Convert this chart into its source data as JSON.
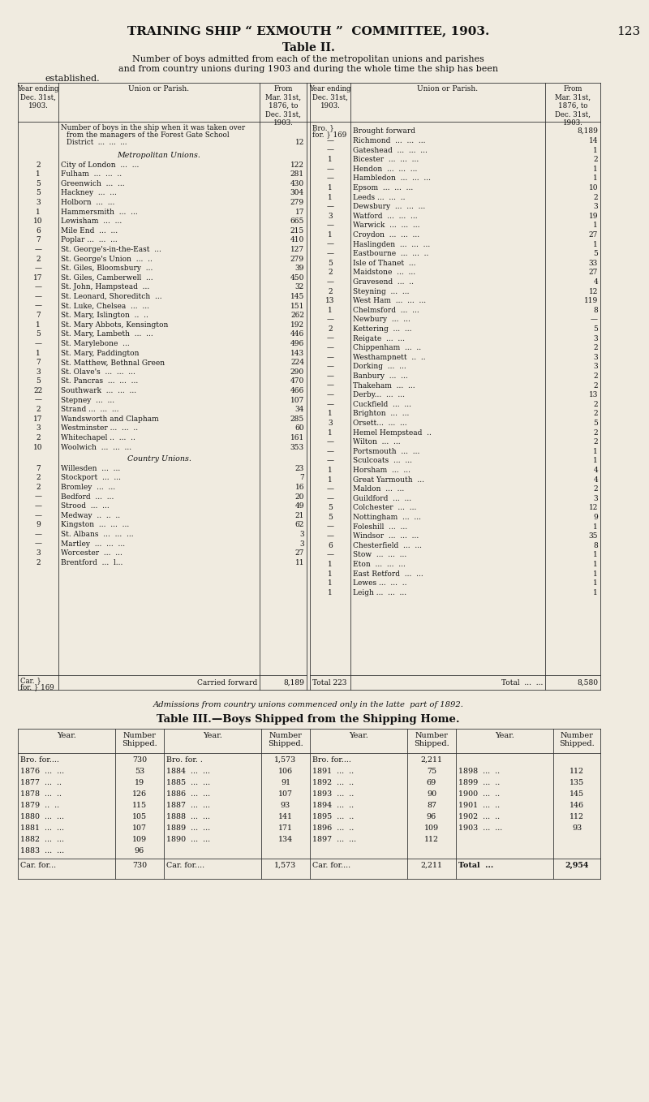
{
  "bg_color": "#f0ebe0",
  "page_title": "TRAINING SHIP “ EXMOUTH ”  COMMITTEE, 1903.",
  "page_number": "123",
  "table2_title": "Table II.",
  "table2_note": "Admissions from country unions commenced only in the latte  part of 1892.",
  "table3_title": "Table III.—Boys Shipped from the Shipping Home.",
  "left_rows": [
    {
      "yr": "",
      "union": "Number of boys in the ship when it was taken over",
      "frm": "",
      "special": "forestgate"
    },
    {
      "yr": "",
      "union": "Metropolitan Unions.",
      "frm": "",
      "special": "section_header"
    },
    {
      "yr": "2",
      "union": "City of London  ...  ...",
      "frm": "122"
    },
    {
      "yr": "1",
      "union": "Fulham  ...  ...  ..",
      "frm": "281"
    },
    {
      "yr": "5",
      "union": "Greenwich  ...  ...",
      "frm": "430"
    },
    {
      "yr": "5",
      "union": "Hackney  ...  ...",
      "frm": "304"
    },
    {
      "yr": "3",
      "union": "Holborn  ...  ...",
      "frm": "279"
    },
    {
      "yr": "1",
      "union": "Hammersmith  ...  ...",
      "frm": "17"
    },
    {
      "yr": "10",
      "union": "Lewisham  ...  ...",
      "frm": "665"
    },
    {
      "yr": "6",
      "union": "Mile End  ...  ...",
      "frm": "215"
    },
    {
      "yr": "7",
      "union": "Poplar ...  ...  ...",
      "frm": "410"
    },
    {
      "yr": "—",
      "union": "St. George's-in-the-East  ...",
      "frm": "127"
    },
    {
      "yr": "2",
      "union": "St. George's Union  ...  ..",
      "frm": "279"
    },
    {
      "yr": "—",
      "union": "St. Giles, Bloomsbury  ...",
      "frm": "39"
    },
    {
      "yr": "17",
      "union": "St. Giles, Camberwell  ...",
      "frm": "450"
    },
    {
      "yr": "—",
      "union": "St. John, Hampstead  ...",
      "frm": "32"
    },
    {
      "yr": "—",
      "union": "St. Leonard, Shoreditch  ...",
      "frm": "145"
    },
    {
      "yr": "—",
      "union": "St. Luke, Chelsea  ...  ...",
      "frm": "151"
    },
    {
      "yr": "7",
      "union": "St. Mary, Islington  ..  ..",
      "frm": "262"
    },
    {
      "yr": "1",
      "union": "St. Mary Abbots, Kensington",
      "frm": "192"
    },
    {
      "yr": "5",
      "union": "St. Mary, Lambeth  ...  ...",
      "frm": "446"
    },
    {
      "yr": "—",
      "union": "St. Marylebone  ...",
      "frm": "496"
    },
    {
      "yr": "1",
      "union": "St. Mary, Paddington",
      "frm": "143"
    },
    {
      "yr": "7",
      "union": "St. Matthew, Bethnal Green",
      "frm": "224"
    },
    {
      "yr": "3",
      "union": "St. Olave's  ...  ...  ...",
      "frm": "290"
    },
    {
      "yr": "5",
      "union": "St. Pancras  ...  ...  ...",
      "frm": "470"
    },
    {
      "yr": "22",
      "union": "Southwark  ...  ...  ...",
      "frm": "466"
    },
    {
      "yr": "—",
      "union": "Stepney  ...  ...",
      "frm": "107"
    },
    {
      "yr": "2",
      "union": "Strand ...  ...  ...",
      "frm": "34"
    },
    {
      "yr": "17",
      "union": "Wandsworth and Clapham",
      "frm": "285"
    },
    {
      "yr": "3",
      "union": "Westminster ...  ...  ..",
      "frm": "60"
    },
    {
      "yr": "2",
      "union": "Whitechapel ..  ...  ..",
      "frm": "161"
    },
    {
      "yr": "10",
      "union": "Woolwich  ...  ...  ...",
      "frm": "353"
    },
    {
      "yr": "",
      "union": "Country Unions.",
      "frm": "",
      "special": "section_header"
    },
    {
      "yr": "7",
      "union": "Willesden  ...  ...",
      "frm": "23"
    },
    {
      "yr": "2",
      "union": "Stockport  ...  ...",
      "frm": "7"
    },
    {
      "yr": "2",
      "union": "Bromley  ...  ...",
      "frm": "16"
    },
    {
      "yr": "—",
      "union": "Bedford  ...  ...",
      "frm": "20"
    },
    {
      "yr": "—",
      "union": "Strood  ...  ...",
      "frm": "49"
    },
    {
      "yr": "—",
      "union": "Medway  ..  ..  ..",
      "frm": "21"
    },
    {
      "yr": "9",
      "union": "Kingston  ...  ...  ...",
      "frm": "62"
    },
    {
      "yr": "—",
      "union": "St. Albans  ...  ...  ...",
      "frm": "3"
    },
    {
      "yr": "—",
      "union": "Martley  ...  ...  ...",
      "frm": "3"
    },
    {
      "yr": "3",
      "union": "Worcester  ...  ...",
      "frm": "27"
    },
    {
      "yr": "2",
      "union": "Brentford  ...  l...",
      "frm": "11"
    }
  ],
  "right_rows": [
    {
      "yr": "Bro.\nfor.} 169",
      "union": "Brought forward",
      "frm": "8,189",
      "special": "bro_fwd"
    },
    {
      "yr": "—",
      "union": "Richmond  ...  ...  ...",
      "frm": "14"
    },
    {
      "yr": "—",
      "union": "Gateshead  ...  ...  ...",
      "frm": "1"
    },
    {
      "yr": "1",
      "union": "Bicester  ...  ...  ...",
      "frm": "2"
    },
    {
      "yr": "—",
      "union": "Hendon  ...  ...  ...",
      "frm": "1"
    },
    {
      "yr": "—",
      "union": "Hambledon  ...  ...  ...",
      "frm": "1"
    },
    {
      "yr": "1",
      "union": "Epsom  ...  ...  ...",
      "frm": "10"
    },
    {
      "yr": "1",
      "union": "Leeds ...  ...  ..",
      "frm": "2"
    },
    {
      "yr": "—",
      "union": "Dewsbury  ...  ...  ...",
      "frm": "3"
    },
    {
      "yr": "3",
      "union": "Watford  ...  ...  ...",
      "frm": "19"
    },
    {
      "yr": "—",
      "union": "Warwick  ...  ...  ...",
      "frm": "1"
    },
    {
      "yr": "1",
      "union": "Croydon  ...  ...  ...",
      "frm": "27"
    },
    {
      "yr": "—",
      "union": "Haslingden  ...  ...  ...",
      "frm": "1"
    },
    {
      "yr": "—",
      "union": "Eastbourne  ...  ...  ..",
      "frm": "5"
    },
    {
      "yr": "5",
      "union": "Isle of Thanet  ...",
      "frm": "33"
    },
    {
      "yr": "2",
      "union": "Maidstone  ...  ...",
      "frm": "27"
    },
    {
      "yr": "—",
      "union": "Gravesend  ...  ..",
      "frm": "4"
    },
    {
      "yr": "2",
      "union": "Steyning  ...  ...",
      "frm": "12"
    },
    {
      "yr": "13",
      "union": "West Ham  ...  ...  ...",
      "frm": "119"
    },
    {
      "yr": "1",
      "union": "Chelmsford  ...  ...",
      "frm": "8"
    },
    {
      "yr": "—",
      "union": "Newbury  ...  ...",
      "frm": "—"
    },
    {
      "yr": "2",
      "union": "Kettering  ...  ...",
      "frm": "5"
    },
    {
      "yr": "—",
      "union": "Reigate  ...  ...",
      "frm": "3"
    },
    {
      "yr": "—",
      "union": "Chippenham  ...  ..",
      "frm": "2"
    },
    {
      "yr": "—",
      "union": "Westhampnett  ..  ..",
      "frm": "3"
    },
    {
      "yr": "—",
      "union": "Dorking  ...  ...",
      "frm": "3"
    },
    {
      "yr": "—",
      "union": "Banbury  ...  ...",
      "frm": "2"
    },
    {
      "yr": "—",
      "union": "Thakeham  ...  ...",
      "frm": "2"
    },
    {
      "yr": "—",
      "union": "Derby...  ...  ...",
      "frm": "13"
    },
    {
      "yr": "—",
      "union": "Cuckfield  ...  ...",
      "frm": "2"
    },
    {
      "yr": "1",
      "union": "Brighton  ...  ...",
      "frm": "2"
    },
    {
      "yr": "3",
      "union": "Orsett...  ...  ...",
      "frm": "5"
    },
    {
      "yr": "1",
      "union": "Hemel Hempstead  ..",
      "frm": "2"
    },
    {
      "yr": "—",
      "union": "Wilton  ...  ...",
      "frm": "2"
    },
    {
      "yr": "—",
      "union": "Portsmouth  ...  ...",
      "frm": "1"
    },
    {
      "yr": "—",
      "union": "Sculcoats  ...  ...",
      "frm": "1"
    },
    {
      "yr": "1",
      "union": "Horsham  ...  ...",
      "frm": "4"
    },
    {
      "yr": "1",
      "union": "Great Yarmouth  ...",
      "frm": "4"
    },
    {
      "yr": "—",
      "union": "Maldon  ...  ...",
      "frm": "2"
    },
    {
      "yr": "—",
      "union": "Guildford  ...  ...",
      "frm": "3"
    },
    {
      "yr": "5",
      "union": "Colchester  ...  ...",
      "frm": "12"
    },
    {
      "yr": "5",
      "union": "Nottingham  ...  ...",
      "frm": "9"
    },
    {
      "yr": "—",
      "union": "Foleshill  ...  ...",
      "frm": "1"
    },
    {
      "yr": "—",
      "union": "Windsor  ...  ...  ...",
      "frm": "35"
    },
    {
      "yr": "6",
      "union": "Chesterfield  ...  ...",
      "frm": "8"
    },
    {
      "yr": "—",
      "union": "Stow  ...  ...  ...",
      "frm": "1"
    },
    {
      "yr": "1",
      "union": "Eton  ...  ...  ...",
      "frm": "1"
    },
    {
      "yr": "1",
      "union": "East Retford  ...  ...",
      "frm": "1"
    },
    {
      "yr": "1",
      "union": "Lewes ...  ...  ..",
      "frm": "1"
    },
    {
      "yr": "1",
      "union": "Leigh ...  ...  ...",
      "frm": "1"
    }
  ],
  "table3_rows": [
    [
      "1876  ...  ...",
      "53",
      "1884  ...  ...",
      "106",
      "1891  ...  ..",
      "75",
      "1898  ...  ..",
      "112"
    ],
    [
      "1877  ...  ..",
      "19",
      "1885  ...  ...",
      "91",
      "1892  ...  ..",
      "69",
      "1899  ...  ..",
      "135"
    ],
    [
      "1878  ...  ..",
      "126",
      "1886  ...  ...",
      "107",
      "1893  ...  ..",
      "90",
      "1900  ...  ..",
      "145"
    ],
    [
      "1879  ..  ..",
      "115",
      "1887  ...  ...",
      "93",
      "1894  ...  ..",
      "87",
      "1901  ...  ..",
      "146"
    ],
    [
      "1880  ...  ...",
      "105",
      "1888  ...  ...",
      "141",
      "1895  ...  ..",
      "96",
      "1902  ...  ..",
      "112"
    ],
    [
      "1881  ...  ...",
      "107",
      "1889  ...  ...",
      "171",
      "1896  ...  ..",
      "109",
      "1903  ...  ...",
      "93"
    ],
    [
      "1882  ...  ...",
      "109",
      "1890  ...  ...",
      "134",
      "1897  ...  ...",
      "112",
      "",
      ""
    ],
    [
      "1883  ...  ...",
      "96",
      "",
      "",
      "",
      "",
      "",
      ""
    ]
  ]
}
